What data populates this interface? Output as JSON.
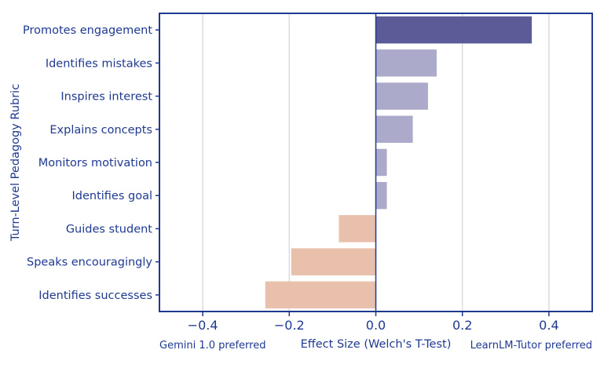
{
  "chart_data": {
    "type": "bar",
    "orientation": "horizontal",
    "title": "",
    "ylabel": "Turn-Level Pedagogy Rubric",
    "xlabel": "Effect Size (Welch's T-Test)",
    "x_left_annotation": "Gemini 1.0 preferred",
    "x_right_annotation": "LearnLM-Tutor preferred",
    "categories": [
      "Promotes engagement",
      "Identifies mistakes",
      "Inspires interest",
      "Explains concepts",
      "Monitors motivation",
      "Identifies goal",
      "Guides student",
      "Speaks encouragingly",
      "Identifies successes"
    ],
    "values": [
      0.36,
      0.14,
      0.12,
      0.085,
      0.025,
      0.025,
      -0.085,
      -0.195,
      -0.255
    ],
    "bar_colors": [
      "#5b5b98",
      "#abaacb",
      "#abaacb",
      "#abaacb",
      "#abaacb",
      "#abaacb",
      "#e8c0ac",
      "#e8c0ac",
      "#e8c0ac"
    ],
    "xlim": [
      -0.5,
      0.5
    ],
    "xticks": [
      -0.4,
      -0.2,
      0.0,
      0.2,
      0.4
    ],
    "xtick_labels": [
      "−0.4",
      "−0.2",
      "0.0",
      "0.2",
      "0.4"
    ],
    "grid": true,
    "colors": {
      "text": "#1f3990",
      "frame": "#1f3990",
      "grid": "#dcdcdc"
    }
  }
}
